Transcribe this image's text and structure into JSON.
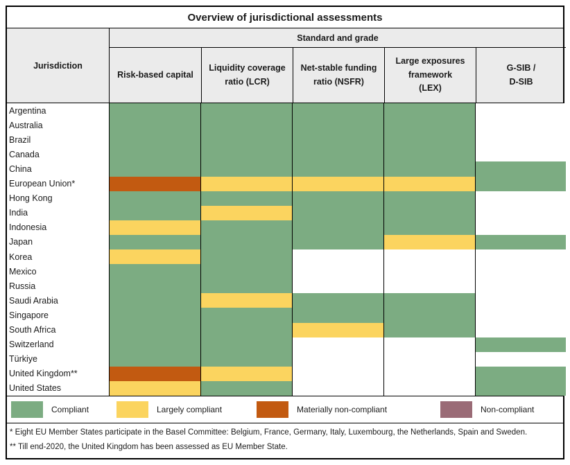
{
  "title": "Overview of jurisdictional assessments",
  "header": {
    "jurisdiction": "Jurisdiction",
    "standard_and_grade": "Standard and grade",
    "columns": [
      "Risk-based capital",
      "Liquidity coverage\nratio (LCR)",
      "Net-stable funding\nratio (NSFR)",
      "Large exposures\nframework\n(LEX)",
      "G-SIB /\nD-SIB"
    ]
  },
  "grade_colors": {
    "compliant": "#7CAC82",
    "largely_compliant": "#FBD45F",
    "materially_non_compliant": "#C25A11",
    "non_compliant": "#9A6B76",
    "blank": "#FFFFFF"
  },
  "rows": [
    {
      "name": "Argentina",
      "cells": [
        "compliant",
        "compliant",
        "compliant",
        "compliant",
        "blank"
      ]
    },
    {
      "name": "Australia",
      "cells": [
        "compliant",
        "compliant",
        "compliant",
        "compliant",
        "blank"
      ]
    },
    {
      "name": "Brazil",
      "cells": [
        "compliant",
        "compliant",
        "compliant",
        "compliant",
        "blank"
      ]
    },
    {
      "name": "Canada",
      "cells": [
        "compliant",
        "compliant",
        "compliant",
        "compliant",
        "blank"
      ]
    },
    {
      "name": "China",
      "cells": [
        "compliant",
        "compliant",
        "compliant",
        "compliant",
        "compliant"
      ]
    },
    {
      "name": "European Union*",
      "cells": [
        "materially_non_compliant",
        "largely_compliant",
        "largely_compliant",
        "largely_compliant",
        "compliant"
      ]
    },
    {
      "name": "Hong Kong",
      "cells": [
        "compliant",
        "compliant",
        "compliant",
        "compliant",
        "blank"
      ]
    },
    {
      "name": "India",
      "cells": [
        "compliant",
        "largely_compliant",
        "compliant",
        "compliant",
        "blank"
      ]
    },
    {
      "name": "Indonesia",
      "cells": [
        "largely_compliant",
        "compliant",
        "compliant",
        "compliant",
        "blank"
      ]
    },
    {
      "name": "Japan",
      "cells": [
        "compliant",
        "compliant",
        "compliant",
        "largely_compliant",
        "compliant"
      ]
    },
    {
      "name": "Korea",
      "cells": [
        "largely_compliant",
        "compliant",
        "blank",
        "blank",
        "blank"
      ]
    },
    {
      "name": "Mexico",
      "cells": [
        "compliant",
        "compliant",
        "blank",
        "blank",
        "blank"
      ]
    },
    {
      "name": "Russia",
      "cells": [
        "compliant",
        "compliant",
        "blank",
        "blank",
        "blank"
      ]
    },
    {
      "name": "Saudi Arabia",
      "cells": [
        "compliant",
        "largely_compliant",
        "compliant",
        "compliant",
        "blank"
      ]
    },
    {
      "name": "Singapore",
      "cells": [
        "compliant",
        "compliant",
        "compliant",
        "compliant",
        "blank"
      ]
    },
    {
      "name": "South Africa",
      "cells": [
        "compliant",
        "compliant",
        "largely_compliant",
        "compliant",
        "blank"
      ]
    },
    {
      "name": "Switzerland",
      "cells": [
        "compliant",
        "compliant",
        "blank",
        "blank",
        "compliant"
      ]
    },
    {
      "name": "Türkiye",
      "cells": [
        "compliant",
        "compliant",
        "blank",
        "blank",
        "blank"
      ]
    },
    {
      "name": "United Kingdom**",
      "cells": [
        "materially_non_compliant",
        "largely_compliant",
        "blank",
        "blank",
        "compliant"
      ]
    },
    {
      "name": "United States",
      "cells": [
        "largely_compliant",
        "compliant",
        "blank",
        "blank",
        "compliant"
      ]
    }
  ],
  "legend": [
    {
      "label": "Compliant",
      "grade": "compliant"
    },
    {
      "label": "Largely compliant",
      "grade": "largely_compliant"
    },
    {
      "label": "Materially non-compliant",
      "grade": "materially_non_compliant"
    },
    {
      "label": "Non-compliant",
      "grade": "non_compliant"
    }
  ],
  "footnotes": [
    "*  Eight EU Member States participate in the Basel Committee: Belgium, France, Germany, Italy, Luxembourg, the Netherlands, Spain and Sweden.",
    "** Till end-2020, the United Kingdom has been assessed as EU Member State."
  ],
  "chart_data": {
    "type": "table",
    "title": "Overview of jurisdictional assessments",
    "row_header": "Jurisdiction",
    "column_group": "Standard and grade",
    "columns": [
      "Risk-based capital",
      "Liquidity coverage ratio (LCR)",
      "Net-stable funding ratio (NSFR)",
      "Large exposures framework (LEX)",
      "G-SIB / D-SIB"
    ],
    "categories": [
      "Argentina",
      "Australia",
      "Brazil",
      "Canada",
      "China",
      "European Union*",
      "Hong Kong",
      "India",
      "Indonesia",
      "Japan",
      "Korea",
      "Mexico",
      "Russia",
      "Saudi Arabia",
      "Singapore",
      "South Africa",
      "Switzerland",
      "Türkiye",
      "United Kingdom**",
      "United States"
    ],
    "values": [
      [
        "Compliant",
        "Compliant",
        "Compliant",
        "Compliant",
        ""
      ],
      [
        "Compliant",
        "Compliant",
        "Compliant",
        "Compliant",
        ""
      ],
      [
        "Compliant",
        "Compliant",
        "Compliant",
        "Compliant",
        ""
      ],
      [
        "Compliant",
        "Compliant",
        "Compliant",
        "Compliant",
        ""
      ],
      [
        "Compliant",
        "Compliant",
        "Compliant",
        "Compliant",
        "Compliant"
      ],
      [
        "Materially non-compliant",
        "Largely compliant",
        "Largely compliant",
        "Largely compliant",
        "Compliant"
      ],
      [
        "Compliant",
        "Compliant",
        "Compliant",
        "Compliant",
        ""
      ],
      [
        "Compliant",
        "Largely compliant",
        "Compliant",
        "Compliant",
        ""
      ],
      [
        "Largely compliant",
        "Compliant",
        "Compliant",
        "Compliant",
        ""
      ],
      [
        "Compliant",
        "Compliant",
        "Compliant",
        "Largely compliant",
        "Compliant"
      ],
      [
        "Largely compliant",
        "Compliant",
        "",
        "",
        ""
      ],
      [
        "Compliant",
        "Compliant",
        "",
        "",
        ""
      ],
      [
        "Compliant",
        "Compliant",
        "",
        "",
        ""
      ],
      [
        "Compliant",
        "Largely compliant",
        "Compliant",
        "Compliant",
        ""
      ],
      [
        "Compliant",
        "Compliant",
        "Compliant",
        "Compliant",
        ""
      ],
      [
        "Compliant",
        "Compliant",
        "Largely compliant",
        "Compliant",
        ""
      ],
      [
        "Compliant",
        "Compliant",
        "",
        "",
        "Compliant"
      ],
      [
        "Compliant",
        "Compliant",
        "",
        "",
        ""
      ],
      [
        "Materially non-compliant",
        "Largely compliant",
        "",
        "",
        "Compliant"
      ],
      [
        "Largely compliant",
        "Compliant",
        "",
        "",
        "Compliant"
      ]
    ],
    "legend_entries": [
      "Compliant",
      "Largely compliant",
      "Materially non-compliant",
      "Non-compliant"
    ],
    "legend_position": "bottom"
  }
}
